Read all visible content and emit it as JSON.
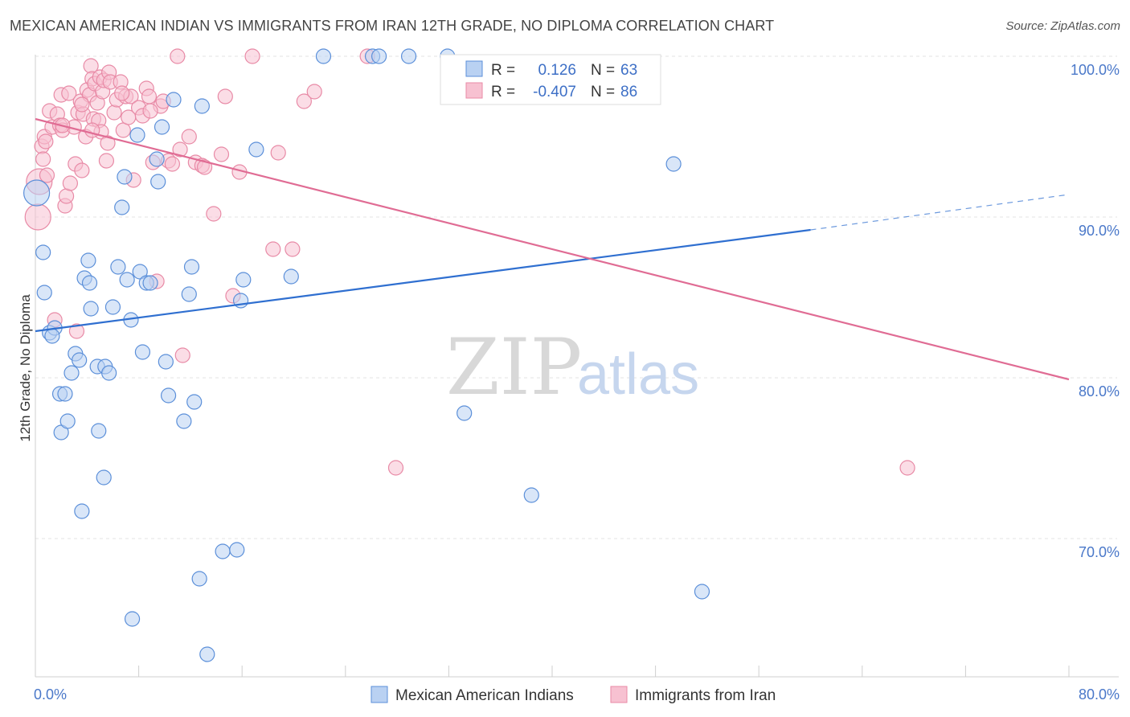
{
  "title": "MEXICAN AMERICAN INDIAN VS IMMIGRANTS FROM IRAN 12TH GRADE, NO DIPLOMA CORRELATION CHART",
  "source": "Source: ZipAtlas.com",
  "watermark": {
    "zip": "ZIP",
    "atlas": "atlas"
  },
  "colors": {
    "blue_fill": "#b9d1f2",
    "blue_stroke": "#5b8fd9",
    "blue_line": "#2f6fd0",
    "pink_fill": "#f7c1d1",
    "pink_stroke": "#e88aa6",
    "pink_line": "#e06c94",
    "grid": "#e3e3e3",
    "tick_text": "#4a78c9"
  },
  "legend_box": {
    "rows": [
      {
        "r_label": "R =",
        "r_value": "0.126",
        "n_label": "N =",
        "n_value": "63",
        "series": "blue"
      },
      {
        "r_label": "R =",
        "r_value": "-0.407",
        "n_label": "N =",
        "n_value": "86",
        "series": "pink"
      }
    ]
  },
  "chart_data": {
    "type": "scatter",
    "title": "MEXICAN AMERICAN INDIAN VS IMMIGRANTS FROM IRAN 12TH GRADE, NO DIPLOMA CORRELATION CHART",
    "xlabel": "",
    "ylabel": "12th Grade, No Diploma",
    "xlim": [
      0,
      80
    ],
    "ylim": [
      61.5,
      101.5
    ],
    "x_tick_labels": [
      "0.0%",
      "80.0%"
    ],
    "y_ticks": [
      70,
      80,
      90,
      100
    ],
    "y_tick_labels": [
      "70.0%",
      "80.0%",
      "90.0%",
      "100.0%"
    ],
    "grid": true,
    "legend_position": "bottom",
    "series": [
      {
        "name": "Mexican American Indians",
        "color": "#5b8fd9",
        "trend": {
          "x": [
            0,
            60
          ],
          "y": [
            82.9,
            89.2
          ],
          "dashed_to": [
            80,
            91.4
          ]
        },
        "points": [
          [
            0.1,
            91.5
          ],
          [
            0.6,
            87.8
          ],
          [
            0.7,
            85.3
          ],
          [
            1.1,
            82.8
          ],
          [
            1.5,
            83.1
          ],
          [
            1.3,
            82.6
          ],
          [
            1.9,
            79.0
          ],
          [
            2.3,
            79.0
          ],
          [
            2.0,
            76.6
          ],
          [
            2.5,
            77.3
          ],
          [
            2.8,
            80.3
          ],
          [
            3.1,
            81.5
          ],
          [
            3.4,
            81.1
          ],
          [
            3.6,
            71.7
          ],
          [
            3.8,
            86.2
          ],
          [
            4.2,
            85.9
          ],
          [
            4.1,
            87.3
          ],
          [
            4.3,
            84.3
          ],
          [
            4.9,
            76.7
          ],
          [
            4.8,
            80.7
          ],
          [
            5.4,
            80.7
          ],
          [
            5.3,
            73.8
          ],
          [
            5.7,
            80.3
          ],
          [
            6.0,
            84.4
          ],
          [
            6.4,
            86.9
          ],
          [
            6.7,
            90.6
          ],
          [
            6.9,
            92.5
          ],
          [
            7.1,
            86.1
          ],
          [
            7.4,
            83.6
          ],
          [
            7.5,
            65.0
          ],
          [
            7.9,
            95.1
          ],
          [
            8.1,
            86.6
          ],
          [
            8.3,
            81.6
          ],
          [
            8.6,
            85.9
          ],
          [
            8.9,
            85.9
          ],
          [
            9.4,
            93.6
          ],
          [
            9.5,
            92.2
          ],
          [
            9.8,
            95.6
          ],
          [
            10.1,
            81.0
          ],
          [
            10.3,
            78.9
          ],
          [
            10.7,
            97.3
          ],
          [
            11.5,
            77.3
          ],
          [
            11.9,
            85.2
          ],
          [
            12.1,
            86.9
          ],
          [
            12.3,
            78.5
          ],
          [
            12.7,
            67.5
          ],
          [
            12.9,
            96.9
          ],
          [
            13.3,
            62.8
          ],
          [
            14.5,
            69.2
          ],
          [
            15.6,
            69.3
          ],
          [
            15.9,
            84.8
          ],
          [
            16.1,
            86.1
          ],
          [
            17.1,
            94.2
          ],
          [
            19.8,
            86.3
          ],
          [
            22.3,
            100.0
          ],
          [
            26.1,
            100.0
          ],
          [
            26.6,
            100.0
          ],
          [
            28.9,
            100.0
          ],
          [
            31.9,
            100.0
          ],
          [
            33.2,
            77.8
          ],
          [
            38.4,
            72.7
          ],
          [
            49.4,
            93.3
          ],
          [
            51.6,
            66.7
          ]
        ]
      },
      {
        "name": "Immigrants from Iran",
        "color": "#e88aa6",
        "trend": {
          "x": [
            0,
            80
          ],
          "y": [
            96.1,
            79.9
          ]
        },
        "points": [
          [
            0.2,
            90.0
          ],
          [
            0.3,
            92.2
          ],
          [
            0.5,
            94.4
          ],
          [
            0.6,
            93.6
          ],
          [
            0.7,
            95.0
          ],
          [
            0.8,
            94.7
          ],
          [
            0.9,
            92.6
          ],
          [
            1.1,
            96.6
          ],
          [
            1.3,
            95.6
          ],
          [
            1.5,
            83.6
          ],
          [
            1.7,
            96.4
          ],
          [
            1.9,
            95.7
          ],
          [
            2.0,
            97.6
          ],
          [
            2.1,
            95.4
          ],
          [
            2.3,
            90.7
          ],
          [
            2.4,
            91.3
          ],
          [
            2.6,
            97.7
          ],
          [
            2.7,
            92.1
          ],
          [
            3.0,
            95.6
          ],
          [
            3.1,
            93.3
          ],
          [
            3.2,
            82.9
          ],
          [
            3.3,
            96.5
          ],
          [
            3.5,
            97.2
          ],
          [
            3.6,
            92.9
          ],
          [
            3.7,
            96.4
          ],
          [
            3.9,
            95.0
          ],
          [
            4.0,
            97.9
          ],
          [
            4.2,
            97.6
          ],
          [
            4.3,
            99.4
          ],
          [
            4.4,
            98.6
          ],
          [
            4.5,
            96.1
          ],
          [
            4.6,
            98.3
          ],
          [
            4.8,
            97.1
          ],
          [
            4.9,
            96.0
          ],
          [
            5.0,
            98.7
          ],
          [
            5.1,
            95.3
          ],
          [
            5.2,
            97.8
          ],
          [
            5.3,
            98.5
          ],
          [
            5.5,
            93.5
          ],
          [
            5.6,
            94.6
          ],
          [
            5.7,
            99.0
          ],
          [
            5.8,
            98.4
          ],
          [
            6.1,
            96.5
          ],
          [
            6.3,
            97.3
          ],
          [
            6.6,
            98.4
          ],
          [
            6.8,
            95.4
          ],
          [
            7.0,
            97.5
          ],
          [
            7.2,
            96.2
          ],
          [
            7.4,
            97.5
          ],
          [
            7.6,
            92.3
          ],
          [
            8.0,
            96.8
          ],
          [
            8.3,
            96.3
          ],
          [
            8.6,
            98.0
          ],
          [
            8.8,
            97.5
          ],
          [
            9.1,
            93.4
          ],
          [
            9.4,
            86.0
          ],
          [
            9.7,
            96.9
          ],
          [
            9.9,
            97.2
          ],
          [
            10.3,
            93.5
          ],
          [
            10.6,
            93.3
          ],
          [
            11.0,
            100.0
          ],
          [
            11.2,
            94.2
          ],
          [
            11.4,
            81.4
          ],
          [
            11.9,
            95.0
          ],
          [
            12.4,
            93.4
          ],
          [
            12.9,
            93.2
          ],
          [
            13.1,
            93.1
          ],
          [
            13.8,
            90.2
          ],
          [
            14.4,
            93.9
          ],
          [
            14.7,
            97.5
          ],
          [
            15.3,
            85.1
          ],
          [
            15.8,
            92.8
          ],
          [
            16.8,
            100.0
          ],
          [
            18.4,
            88.0
          ],
          [
            18.8,
            94.0
          ],
          [
            19.9,
            88.0
          ],
          [
            20.8,
            97.2
          ],
          [
            21.6,
            97.8
          ],
          [
            25.7,
            100.0
          ],
          [
            27.9,
            74.4
          ],
          [
            67.5,
            74.4
          ],
          [
            2.1,
            95.7
          ],
          [
            3.6,
            97.0
          ],
          [
            6.7,
            97.7
          ],
          [
            8.9,
            96.6
          ],
          [
            4.4,
            95.4
          ]
        ]
      }
    ]
  }
}
